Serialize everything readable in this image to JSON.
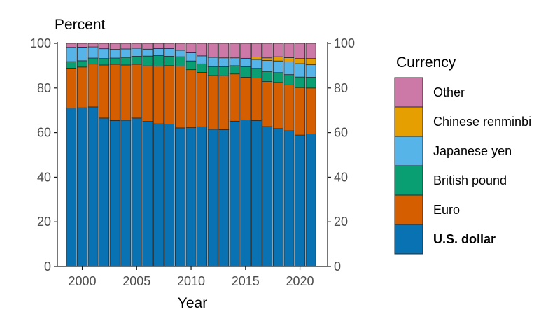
{
  "chart_data": {
    "type": "bar",
    "stacked": true,
    "title": "",
    "ylabel": "Percent",
    "xlabel": "Year",
    "ylim": [
      0,
      100
    ],
    "yticks": [
      0,
      20,
      40,
      60,
      80,
      100
    ],
    "ytick_labels": [
      "0",
      "20",
      "40",
      "60",
      "80",
      "100"
    ],
    "xticks": [
      2000,
      2005,
      2010,
      2015,
      2020
    ],
    "xtick_labels": [
      "2000",
      "2005",
      "2010",
      "2015",
      "2020"
    ],
    "secondary_yaxis": true,
    "legend_title": "Currency",
    "legend_position": "right",
    "categories": [
      1999,
      2000,
      2001,
      2002,
      2003,
      2004,
      2005,
      2006,
      2007,
      2008,
      2009,
      2010,
      2011,
      2012,
      2013,
      2014,
      2015,
      2016,
      2017,
      2018,
      2019,
      2020,
      2021
    ],
    "series": [
      {
        "name": "U.S. dollar",
        "color": "#0872b3",
        "bold": true,
        "values": [
          71.0,
          71.1,
          71.5,
          66.5,
          65.4,
          65.5,
          66.5,
          65.0,
          63.9,
          63.8,
          62.1,
          62.2,
          62.6,
          61.5,
          61.3,
          65.1,
          65.7,
          65.4,
          62.7,
          61.8,
          60.8,
          58.9,
          59.4
        ]
      },
      {
        "name": "Euro",
        "color": "#d55e00",
        "values": [
          17.9,
          18.3,
          19.2,
          23.8,
          25.2,
          24.8,
          24.1,
          24.9,
          25.9,
          26.2,
          27.7,
          26.0,
          24.4,
          24.1,
          24.2,
          21.2,
          19.1,
          19.1,
          20.2,
          20.7,
          20.6,
          21.3,
          20.6
        ]
      },
      {
        "name": "British pound",
        "color": "#0a9e73",
        "values": [
          2.9,
          2.8,
          2.7,
          2.9,
          2.8,
          3.4,
          3.6,
          4.4,
          4.7,
          4.2,
          4.2,
          3.9,
          3.8,
          4.0,
          4.0,
          3.7,
          4.7,
          4.3,
          4.5,
          4.4,
          4.6,
          4.7,
          4.8
        ]
      },
      {
        "name": "Japanese yen",
        "color": "#56b4e9",
        "values": [
          6.4,
          6.1,
          5.0,
          4.4,
          3.9,
          3.8,
          3.6,
          3.1,
          3.2,
          3.5,
          2.9,
          3.7,
          3.6,
          4.1,
          4.0,
          3.5,
          3.8,
          4.0,
          4.9,
          5.2,
          5.7,
          6.0,
          5.6
        ]
      },
      {
        "name": "Chinese renminbi",
        "color": "#e69f00",
        "values": [
          0,
          0,
          0,
          0,
          0,
          0,
          0,
          0,
          0,
          0,
          0,
          0,
          0,
          0,
          0,
          0,
          0,
          1.1,
          1.2,
          1.9,
          1.9,
          2.3,
          2.8
        ]
      },
      {
        "name": "Other",
        "color": "#cc79a7",
        "values": [
          1.8,
          1.7,
          1.6,
          2.4,
          2.7,
          2.5,
          2.2,
          2.6,
          2.3,
          2.3,
          3.1,
          4.2,
          5.6,
          6.3,
          6.5,
          6.5,
          6.7,
          6.1,
          6.5,
          6.0,
          6.4,
          6.8,
          6.8
        ]
      }
    ]
  }
}
